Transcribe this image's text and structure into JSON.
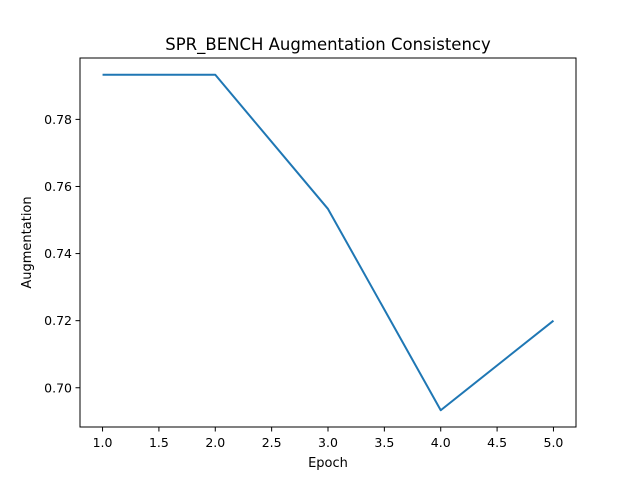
{
  "chart_data": {
    "type": "line",
    "title": "SPR_BENCH Augmentation Consistency",
    "xlabel": "Epoch",
    "ylabel": "Augmentation",
    "x": [
      1.0,
      2.0,
      3.0,
      4.0,
      5.0
    ],
    "series": [
      {
        "values": [
          0.7933,
          0.7933,
          0.7533,
          0.6933,
          0.72
        ],
        "color": "#1f77b4"
      }
    ],
    "xlim": [
      0.8,
      5.2
    ],
    "ylim": [
      0.6883,
      0.7983
    ],
    "x_ticks": [
      1.0,
      1.5,
      2.0,
      2.5,
      3.0,
      3.5,
      4.0,
      4.5,
      5.0
    ],
    "x_tick_labels": [
      "1.0",
      "1.5",
      "2.0",
      "2.5",
      "3.0",
      "3.5",
      "4.0",
      "4.5",
      "5.0"
    ],
    "y_ticks": [
      0.7,
      0.72,
      0.74,
      0.76,
      0.78
    ],
    "y_tick_labels": [
      "0.70",
      "0.72",
      "0.74",
      "0.76",
      "0.78"
    ],
    "grid": false,
    "legend": "none"
  }
}
